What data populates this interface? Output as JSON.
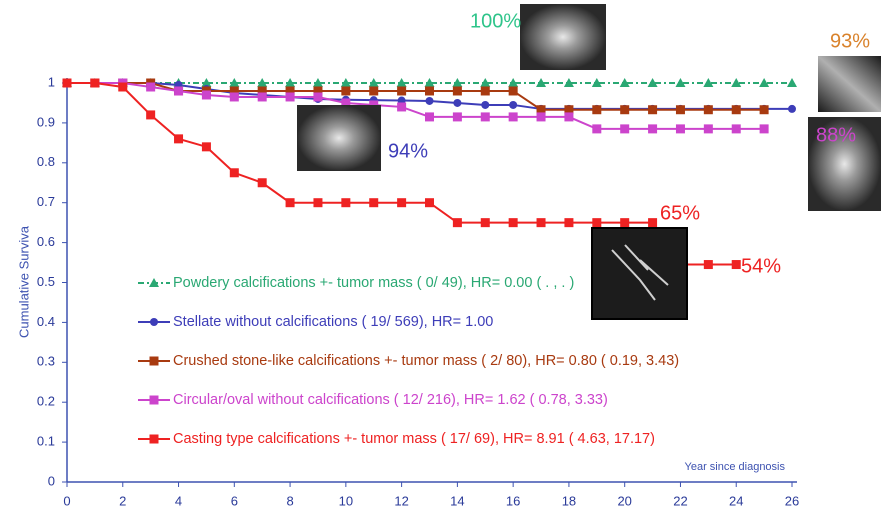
{
  "chart_data": {
    "type": "line",
    "y_label": "Cumulative Surviva",
    "x_label": "Year since diagnosis",
    "x": [
      0,
      1,
      2,
      3,
      4,
      5,
      6,
      7,
      8,
      9,
      10,
      11,
      12,
      13,
      14,
      15,
      16,
      17,
      18,
      19,
      20,
      21,
      22,
      23,
      24,
      25,
      26
    ],
    "xlim": [
      0,
      26
    ],
    "xticks": [
      0,
      2,
      4,
      6,
      8,
      10,
      12,
      14,
      16,
      18,
      20,
      22,
      24,
      26
    ],
    "ylim": [
      0,
      1
    ],
    "yticks": [
      0,
      0.1,
      0.2,
      0.3,
      0.4,
      0.5,
      0.6,
      0.7,
      0.8,
      0.9,
      1
    ],
    "series": [
      {
        "name": "Powdery calcifications +- tumor mass ( 0/ 49), HR= 0.00 ( . , . )",
        "color": "#2aa873",
        "marker": "triangle",
        "line_style": "dashdot",
        "values": [
          1,
          1,
          1,
          1,
          1,
          1,
          1,
          1,
          1,
          1,
          1,
          1,
          1,
          1,
          1,
          1,
          1,
          1,
          1,
          1,
          1,
          1,
          1,
          1,
          1,
          1,
          1
        ]
      },
      {
        "name": "Stellate without calcifications ( 19/ 569), HR= 1.00",
        "color": "#3d3db8",
        "marker": "circle",
        "line_style": "solid",
        "values": [
          1,
          1,
          1,
          1,
          0.995,
          0.985,
          0.975,
          0.97,
          0.965,
          0.96,
          0.958,
          0.957,
          0.956,
          0.955,
          0.95,
          0.945,
          0.945,
          0.935,
          0.935,
          0.935,
          0.935,
          0.935,
          0.935,
          0.935,
          0.935,
          0.935,
          0.935
        ]
      },
      {
        "name": "Crushed stone-like calcifications +- tumor mass ( 2/ 80), HR= 0.80 ( 0.19, 3.43)",
        "color": "#a83a10",
        "marker": "square",
        "line_style": "solid",
        "values": [
          1,
          1,
          1,
          1,
          0.98,
          0.98,
          0.98,
          0.98,
          0.98,
          0.98,
          0.98,
          0.98,
          0.98,
          0.98,
          0.98,
          0.98,
          0.98,
          0.933,
          0.933,
          0.933,
          0.933,
          0.933,
          0.933,
          0.933,
          0.933,
          0.933,
          null
        ]
      },
      {
        "name": "Circular/oval without calcifications ( 12/ 216), HR= 1.62 ( 0.78, 3.33)",
        "color": "#cc44cc",
        "marker": "square",
        "line_style": "solid",
        "values": [
          1,
          1,
          1,
          0.99,
          0.98,
          0.97,
          0.965,
          0.965,
          0.965,
          0.965,
          0.95,
          0.945,
          0.94,
          0.915,
          0.915,
          0.915,
          0.915,
          0.915,
          0.915,
          0.885,
          0.885,
          0.885,
          0.885,
          0.885,
          0.885,
          0.885,
          null
        ]
      },
      {
        "name": "Casting type calcifications +- tumor mass ( 17/ 69), HR= 8.91 ( 4.63, 17.17)",
        "color": "#ee2222",
        "marker": "square",
        "line_style": "solid",
        "values": [
          1,
          1,
          0.99,
          0.92,
          0.86,
          0.84,
          0.775,
          0.75,
          0.7,
          0.7,
          0.7,
          0.7,
          0.7,
          0.7,
          0.65,
          0.65,
          0.65,
          0.65,
          0.65,
          0.65,
          0.65,
          0.65,
          0.545,
          0.545,
          0.545,
          null,
          null
        ]
      }
    ],
    "annotations": [
      {
        "text": "100%",
        "color": "#2ec48a"
      },
      {
        "text": "94%",
        "color": "#3d3db8"
      },
      {
        "text": "93%",
        "color": "#d9822b"
      },
      {
        "text": "88%",
        "color": "#cc44cc"
      },
      {
        "text": "65%",
        "color": "#ee2222"
      },
      {
        "text": "54%",
        "color": "#ee2222"
      }
    ]
  }
}
